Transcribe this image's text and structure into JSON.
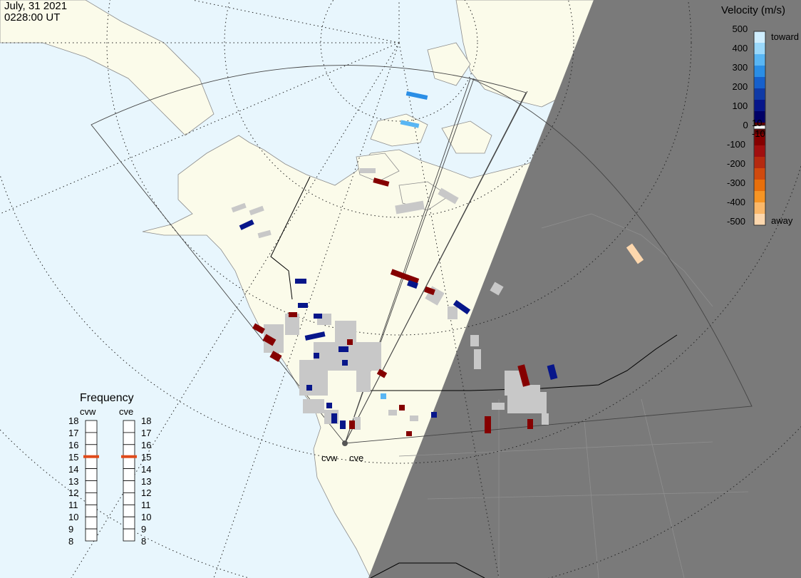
{
  "header": {
    "date": "July, 31 2021",
    "time": "0228:00 UT"
  },
  "velocity_scale": {
    "title": "Velocity (m/s)",
    "ticks": [
      "500",
      "400",
      "300",
      "200",
      "100",
      "0",
      "-100",
      "-200",
      "-300",
      "-400",
      "-500"
    ],
    "inner_ticks": [
      "10",
      "-10"
    ],
    "toward_label": "toward",
    "away_label": "away",
    "colors": [
      "#cfeeff",
      "#9ad8fb",
      "#59b6f4",
      "#2a8ee6",
      "#1660cc",
      "#0f3aa6",
      "#07168a",
      "#000066",
      "#5c0000",
      "#850000",
      "#a10f0f",
      "#b52a10",
      "#d04a0e",
      "#e86f0a",
      "#f79524",
      "#fbb86a",
      "#fdd7ad"
    ]
  },
  "frequency": {
    "title": "Frequency",
    "radars": [
      "cvw",
      "cve"
    ],
    "ticks": [
      "18",
      "17",
      "16",
      "15",
      "14",
      "13",
      "12",
      "11",
      "10",
      "9",
      "8"
    ],
    "values_mhz": [
      15,
      15
    ],
    "marker_color": "#e04a1a"
  },
  "radars": {
    "site_labels": [
      "cvw",
      "cve"
    ]
  },
  "map_colors": {
    "ocean": "#e8f6fd",
    "land": "#fbfbea",
    "night": "#7a7a7a",
    "ground_scatter": "#c8c8c8"
  }
}
